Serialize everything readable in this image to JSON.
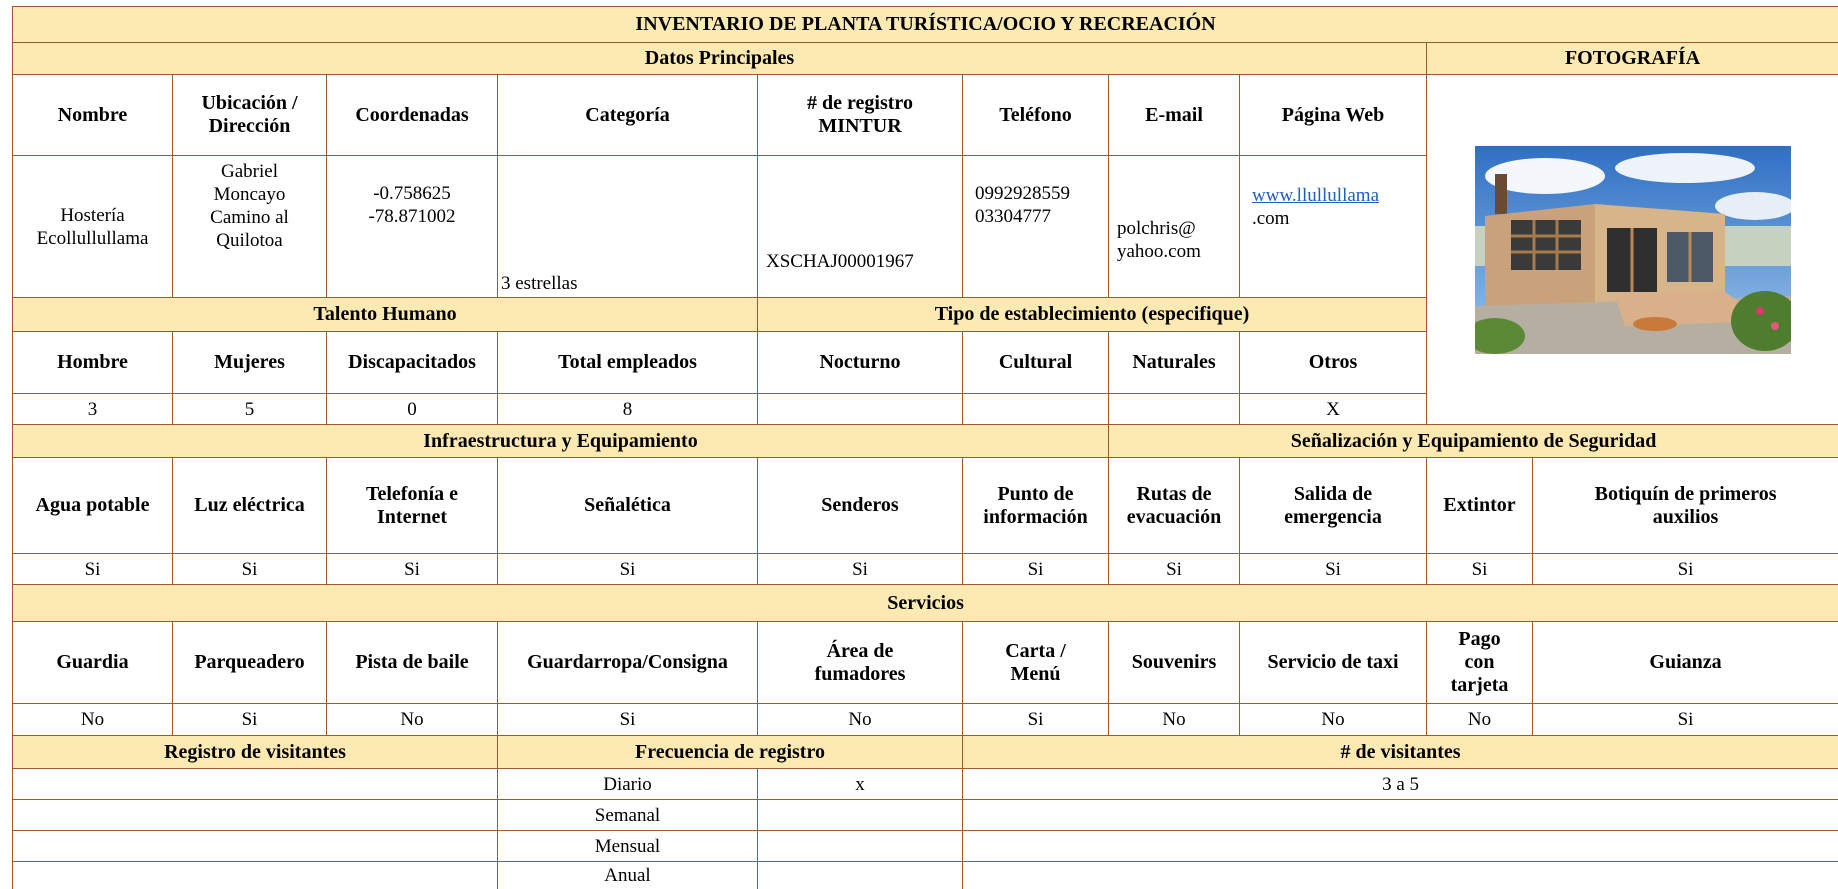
{
  "header": {
    "title": "INVENTARIO DE PLANTA TURÍSTICA/OCIO Y RECREACIÓN",
    "datos_principales": "Datos Principales",
    "fotografia": "FOTOGRAFÍA"
  },
  "datos": {
    "headers": [
      [
        "Nombre"
      ],
      [
        "Ubicación /",
        "Dirección"
      ],
      [
        "Coordenadas"
      ],
      [
        "Categoría"
      ],
      [
        "# de registro",
        "MINTUR"
      ],
      [
        "Teléfono"
      ],
      [
        "E-mail"
      ],
      [
        "Página Web"
      ]
    ],
    "values": [
      [
        "Hostería",
        "Ecollullullama"
      ],
      [
        "Gabriel",
        "Moncayo",
        "Camino al",
        "Quilotoa"
      ],
      [
        "-0.758625",
        "-78.871002"
      ],
      [
        "3 estrellas"
      ],
      [
        "XSCHAJ00001967"
      ],
      [
        "0992928559",
        "03304777"
      ],
      [
        "polchris@",
        "yahoo.com"
      ],
      [
        "www.llullullama",
        ".com"
      ]
    ]
  },
  "talento_humano": {
    "title": "Talento Humano",
    "headers": [
      [
        "Hombre"
      ],
      [
        "Mujeres"
      ],
      [
        "Discapacitados"
      ],
      [
        "Total empleados"
      ]
    ],
    "values": [
      "3",
      "5",
      "0",
      "8"
    ]
  },
  "tipo_establecimiento": {
    "title": "Tipo de establecimiento (especifique)",
    "headers": [
      [
        "Nocturno"
      ],
      [
        "Cultural"
      ],
      [
        "Naturales"
      ],
      [
        "Otros"
      ]
    ],
    "values": [
      null,
      null,
      null,
      "X"
    ]
  },
  "infraestructura": {
    "title": "Infraestructura y Equipamiento",
    "headers": [
      [
        "Agua potable"
      ],
      [
        "Luz eléctrica"
      ],
      [
        "Telefonía e",
        "Internet"
      ],
      [
        "Señalética"
      ],
      [
        "Senderos"
      ],
      [
        "Punto de",
        "información"
      ]
    ],
    "values": [
      "Si",
      "Si",
      "Si",
      "Si",
      "Si",
      "Si"
    ]
  },
  "senalizacion": {
    "title": "Señalización y Equipamiento de Seguridad",
    "headers": [
      [
        "Rutas de",
        "evacuación"
      ],
      [
        "Salida de",
        "emergencia"
      ],
      [
        "Extintor"
      ],
      [
        "Botiquín de primeros",
        "auxilios"
      ]
    ],
    "values": [
      "Si",
      "Si",
      "Si",
      "Si"
    ]
  },
  "servicios": {
    "title": "Servicios",
    "headers": [
      [
        "Guardia"
      ],
      [
        "Parqueadero"
      ],
      [
        "Pista de baile"
      ],
      [
        "Guardarropa/Consigna"
      ],
      [
        "Área de",
        "fumadores"
      ],
      [
        "Carta /",
        "Menú"
      ],
      [
        "Souvenirs"
      ],
      [
        "Servicio de taxi"
      ],
      [
        "Pago",
        "con",
        "tarjeta"
      ],
      [
        "Guianza"
      ]
    ],
    "values": [
      "No",
      "Si",
      "No",
      "Si",
      "No",
      "Si",
      "No",
      "No",
      "No",
      "Si"
    ]
  },
  "registro": {
    "title": "Registro de visitantes",
    "frecuencia_title": "Frecuencia de registro",
    "visitantes_title": "# de visitantes",
    "rows": [
      {
        "frecuencia": "Diario",
        "marca": "x",
        "visitantes": "3 a 5"
      },
      {
        "frecuencia": "Semanal"
      },
      {
        "frecuencia": "Mensual"
      },
      {
        "frecuencia": "Anual"
      }
    ]
  }
}
